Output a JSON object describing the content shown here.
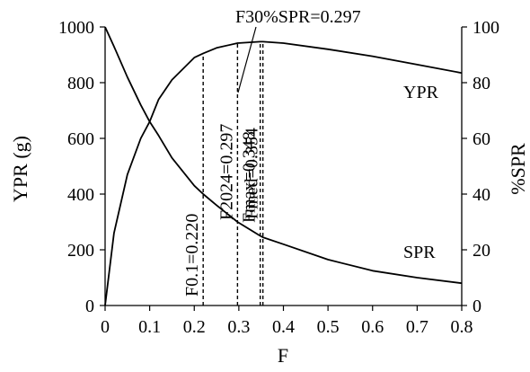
{
  "chart_data": {
    "type": "line",
    "xlabel": "F",
    "ylabel_left": "YPR (g)",
    "ylabel_right": "%SPR",
    "xlim": [
      0,
      0.8
    ],
    "ylim_left": [
      0,
      1000
    ],
    "ylim_right": [
      0,
      100
    ],
    "x_ticks": [
      "0",
      "0.1",
      "0.2",
      "0.3",
      "0.4",
      "0.5",
      "0.6",
      "0.7",
      "0.8"
    ],
    "y_left_ticks": [
      "0",
      "200",
      "400",
      "600",
      "800",
      "1000"
    ],
    "y_right_ticks": [
      "0",
      "20",
      "40",
      "60",
      "80",
      "100"
    ],
    "grid": false,
    "series": [
      {
        "name": "YPR",
        "axis": "left",
        "x": [
          0,
          0.02,
          0.05,
          0.08,
          0.1,
          0.12,
          0.15,
          0.2,
          0.22,
          0.25,
          0.297,
          0.348,
          0.354,
          0.4,
          0.5,
          0.6,
          0.7,
          0.8
        ],
        "y": [
          0,
          260,
          470,
          600,
          660,
          740,
          810,
          890,
          905,
          925,
          942,
          947,
          947,
          942,
          920,
          895,
          865,
          835
        ]
      },
      {
        "name": "SPR",
        "axis": "right",
        "x": [
          0,
          0.02,
          0.05,
          0.08,
          0.1,
          0.12,
          0.15,
          0.2,
          0.22,
          0.25,
          0.297,
          0.348,
          0.354,
          0.4,
          0.5,
          0.6,
          0.7,
          0.8
        ],
        "y": [
          100,
          93,
          82,
          72,
          66,
          61,
          53,
          43,
          40,
          36,
          30,
          25,
          24.5,
          22,
          16.5,
          12.5,
          10,
          8
        ]
      }
    ],
    "reference_lines": [
      {
        "label": "F0.1=0.220",
        "x": 0.22
      },
      {
        "label": "F2024=0.297",
        "x": 0.297
      },
      {
        "label": "Fmax=0.348",
        "x": 0.348
      },
      {
        "label": "Fmed=0.354",
        "x": 0.354
      },
      {
        "label": "F30%SPR=0.297",
        "x": 0.297
      }
    ]
  }
}
